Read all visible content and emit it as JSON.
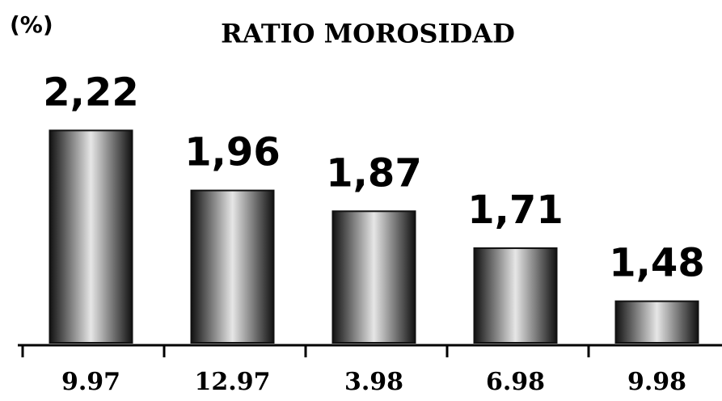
{
  "chart_data": {
    "type": "bar",
    "title": "RATIO MOROSIDAD",
    "y_label": "(%)",
    "categories": [
      "9.97",
      "12.97",
      "3.98",
      "6.98",
      "9.98"
    ],
    "values": [
      2.22,
      1.96,
      1.87,
      1.71,
      1.48
    ],
    "value_labels": [
      "2,22",
      "1,96",
      "1,87",
      "1,71",
      "1,48"
    ],
    "color": "#111111",
    "ylim": [
      1.3,
      2.4
    ]
  }
}
